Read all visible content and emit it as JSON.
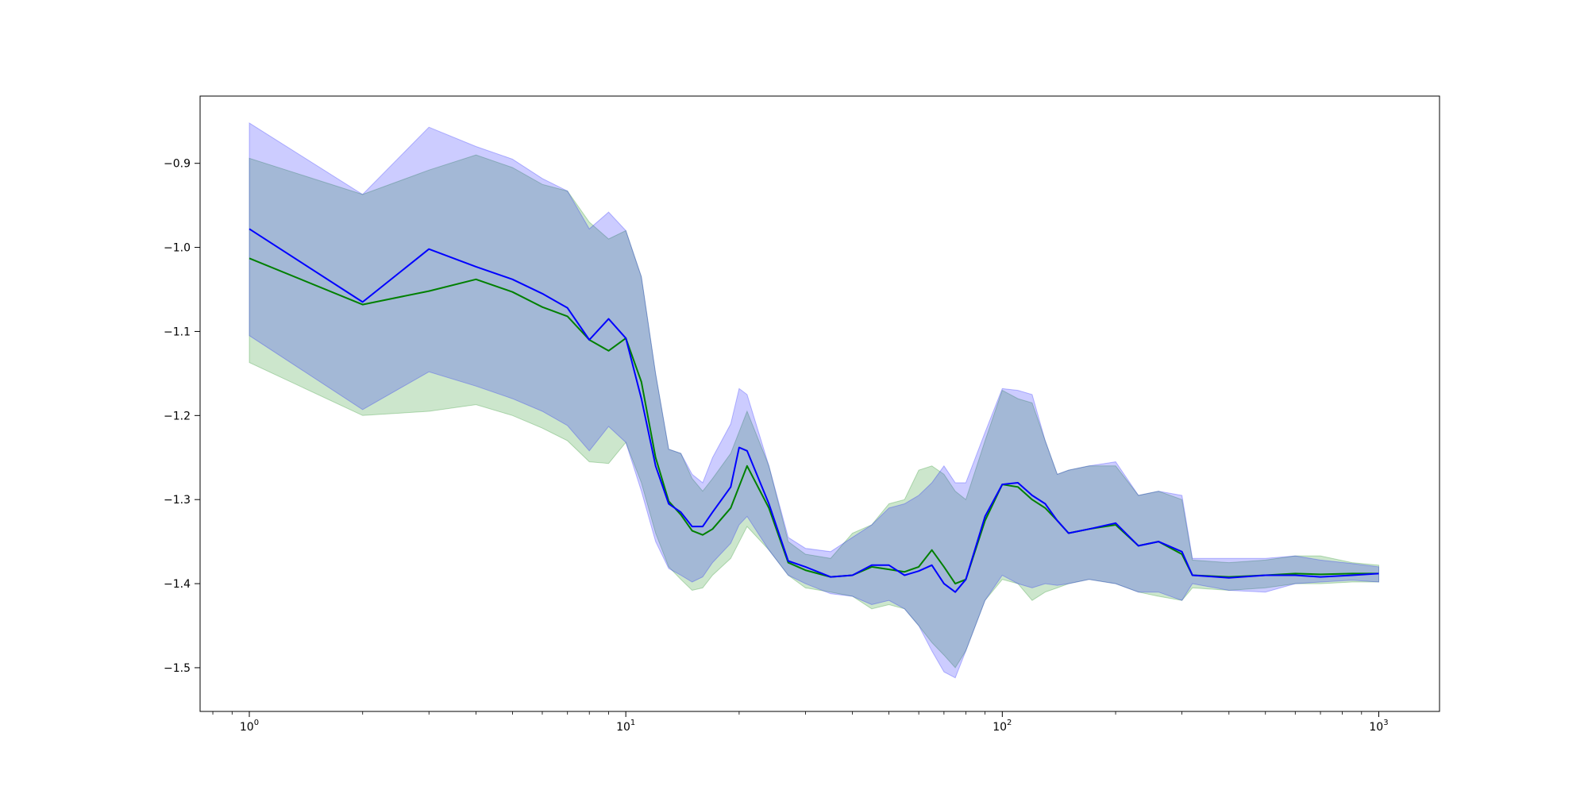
{
  "chart_data": {
    "type": "line",
    "title": "",
    "xlabel": "",
    "ylabel": "",
    "xscale": "log",
    "xlim": [
      0.74,
      1450
    ],
    "ylim": [
      -1.552,
      -0.82
    ],
    "grid": false,
    "legend": "none",
    "x_ticks": [
      {
        "value": 1,
        "base": "10",
        "exp": "0"
      },
      {
        "value": 10,
        "base": "10",
        "exp": "1"
      },
      {
        "value": 100,
        "base": "10",
        "exp": "2"
      },
      {
        "value": 1000,
        "base": "10",
        "exp": "3"
      }
    ],
    "y_ticks": [
      {
        "value": -0.9,
        "label": "−0.9"
      },
      {
        "value": -1.0,
        "label": "−1.0"
      },
      {
        "value": -1.1,
        "label": "−1.1"
      },
      {
        "value": -1.2,
        "label": "−1.2"
      },
      {
        "value": -1.3,
        "label": "−1.3"
      },
      {
        "value": -1.4,
        "label": "−1.4"
      },
      {
        "value": -1.5,
        "label": "−1.5"
      }
    ],
    "series": [
      {
        "color": "#008000",
        "band_color": "#008000",
        "band_opacity": 0.2,
        "x": [
          1,
          2,
          3,
          4,
          5,
          6,
          7,
          8,
          9,
          10,
          11,
          12,
          13,
          14,
          15,
          16,
          17,
          19,
          21,
          24,
          27,
          30,
          35,
          40,
          45,
          50,
          55,
          60,
          65,
          70,
          75,
          80,
          90,
          100,
          110,
          120,
          130,
          140,
          150,
          170,
          200,
          230,
          260,
          300,
          320,
          400,
          500,
          600,
          700,
          850,
          1000
        ],
        "y": [
          -1.013,
          -1.068,
          -1.052,
          -1.038,
          -1.053,
          -1.071,
          -1.082,
          -1.11,
          -1.123,
          -1.108,
          -1.16,
          -1.25,
          -1.302,
          -1.318,
          -1.337,
          -1.342,
          -1.335,
          -1.31,
          -1.26,
          -1.31,
          -1.375,
          -1.384,
          -1.392,
          -1.39,
          -1.38,
          -1.383,
          -1.386,
          -1.38,
          -1.36,
          -1.38,
          -1.4,
          -1.395,
          -1.325,
          -1.282,
          -1.285,
          -1.3,
          -1.31,
          -1.325,
          -1.34,
          -1.335,
          -1.33,
          -1.355,
          -1.35,
          -1.365,
          -1.39,
          -1.392,
          -1.39,
          -1.388,
          -1.389,
          -1.388,
          -1.388
        ],
        "lower": [
          -1.137,
          -1.2,
          -1.195,
          -1.187,
          -1.2,
          -1.215,
          -1.23,
          -1.255,
          -1.257,
          -1.232,
          -1.28,
          -1.34,
          -1.38,
          -1.395,
          -1.408,
          -1.405,
          -1.39,
          -1.37,
          -1.332,
          -1.36,
          -1.39,
          -1.405,
          -1.41,
          -1.415,
          -1.43,
          -1.425,
          -1.43,
          -1.45,
          -1.47,
          -1.485,
          -1.5,
          -1.48,
          -1.42,
          -1.395,
          -1.4,
          -1.42,
          -1.41,
          -1.405,
          -1.4,
          -1.395,
          -1.4,
          -1.41,
          -1.415,
          -1.42,
          -1.405,
          -1.408,
          -1.405,
          -1.4,
          -1.4,
          -1.398,
          -1.398
        ],
        "upper": [
          -0.894,
          -0.937,
          -0.908,
          -0.89,
          -0.905,
          -0.925,
          -0.933,
          -0.97,
          -0.99,
          -0.98,
          -1.035,
          -1.15,
          -1.24,
          -1.245,
          -1.275,
          -1.29,
          -1.275,
          -1.245,
          -1.195,
          -1.26,
          -1.35,
          -1.365,
          -1.37,
          -1.34,
          -1.33,
          -1.305,
          -1.3,
          -1.265,
          -1.26,
          -1.27,
          -1.29,
          -1.3,
          -1.23,
          -1.17,
          -1.18,
          -1.185,
          -1.23,
          -1.27,
          -1.265,
          -1.26,
          -1.26,
          -1.295,
          -1.29,
          -1.3,
          -1.372,
          -1.375,
          -1.372,
          -1.367,
          -1.367,
          -1.375,
          -1.378
        ]
      },
      {
        "color": "#0000ff",
        "band_color": "#0000ff",
        "band_opacity": 0.2,
        "x": [
          1,
          2,
          3,
          4,
          5,
          6,
          7,
          8,
          9,
          10,
          11,
          12,
          13,
          14,
          15,
          16,
          17,
          19,
          20,
          21,
          24,
          27,
          30,
          35,
          40,
          45,
          50,
          55,
          60,
          65,
          70,
          75,
          80,
          90,
          100,
          110,
          120,
          130,
          140,
          150,
          170,
          200,
          230,
          260,
          300,
          320,
          400,
          500,
          600,
          700,
          850,
          1000
        ],
        "y": [
          -0.978,
          -1.065,
          -1.002,
          -1.023,
          -1.038,
          -1.055,
          -1.072,
          -1.11,
          -1.085,
          -1.108,
          -1.18,
          -1.26,
          -1.305,
          -1.315,
          -1.332,
          -1.332,
          -1.315,
          -1.285,
          -1.238,
          -1.242,
          -1.305,
          -1.373,
          -1.38,
          -1.392,
          -1.39,
          -1.378,
          -1.378,
          -1.39,
          -1.385,
          -1.378,
          -1.4,
          -1.41,
          -1.395,
          -1.32,
          -1.282,
          -1.28,
          -1.295,
          -1.305,
          -1.325,
          -1.34,
          -1.335,
          -1.328,
          -1.355,
          -1.35,
          -1.362,
          -1.39,
          -1.393,
          -1.39,
          -1.39,
          -1.392,
          -1.39,
          -1.388
        ],
        "lower": [
          -1.105,
          -1.193,
          -1.148,
          -1.165,
          -1.18,
          -1.195,
          -1.212,
          -1.242,
          -1.213,
          -1.232,
          -1.29,
          -1.35,
          -1.382,
          -1.39,
          -1.398,
          -1.392,
          -1.375,
          -1.352,
          -1.33,
          -1.32,
          -1.36,
          -1.39,
          -1.4,
          -1.412,
          -1.415,
          -1.425,
          -1.42,
          -1.43,
          -1.45,
          -1.48,
          -1.505,
          -1.512,
          -1.48,
          -1.42,
          -1.39,
          -1.4,
          -1.405,
          -1.4,
          -1.402,
          -1.4,
          -1.395,
          -1.4,
          -1.41,
          -1.41,
          -1.42,
          -1.4,
          -1.408,
          -1.41,
          -1.4,
          -1.398,
          -1.396,
          -1.398
        ],
        "upper": [
          -0.852,
          -0.937,
          -0.857,
          -0.88,
          -0.895,
          -0.918,
          -0.933,
          -0.978,
          -0.958,
          -0.98,
          -1.035,
          -1.15,
          -1.24,
          -1.245,
          -1.27,
          -1.28,
          -1.25,
          -1.21,
          -1.168,
          -1.175,
          -1.26,
          -1.345,
          -1.358,
          -1.362,
          -1.345,
          -1.33,
          -1.31,
          -1.305,
          -1.295,
          -1.28,
          -1.26,
          -1.28,
          -1.28,
          -1.22,
          -1.168,
          -1.17,
          -1.175,
          -1.23,
          -1.27,
          -1.265,
          -1.26,
          -1.255,
          -1.295,
          -1.29,
          -1.295,
          -1.37,
          -1.37,
          -1.37,
          -1.367,
          -1.372,
          -1.376,
          -1.38
        ]
      }
    ]
  }
}
